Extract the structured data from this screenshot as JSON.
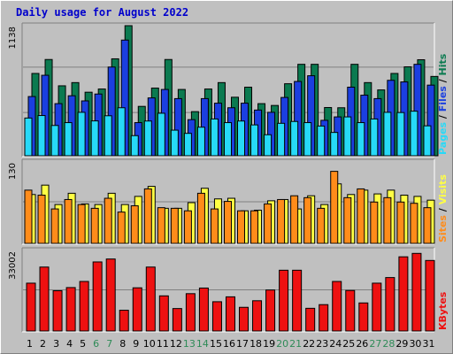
{
  "title": "Daily usage for August 2022",
  "colors": {
    "hits": "#0b7a50",
    "files": "#1b3fe0",
    "pages": "#27d9f7",
    "visits": "#ffff44",
    "sites": "#ff8c1a",
    "kbytes": "#ee1111",
    "weekend_label": "#2e8b57",
    "weekday_label": "#000000",
    "panel_bg": "#c0c0c0",
    "grid": "#808080"
  },
  "chart_data": [
    {
      "type": "bar",
      "name": "hits-files-pages",
      "y_label": "1138",
      "legend": [
        {
          "text": "Pages",
          "color": "#27d9f7"
        },
        {
          "text": " / ",
          "color": "#000000"
        },
        {
          "text": "Files",
          "color": "#1b3fe0"
        },
        {
          "text": " / ",
          "color": "#000000"
        },
        {
          "text": "Hits",
          "color": "#0b7a50"
        }
      ],
      "ylim": [
        0,
        1138
      ],
      "series": [
        {
          "key": "hits",
          "values": [
            720,
            842,
            612,
            640,
            556,
            584,
            848,
            1138,
            432,
            592,
            842,
            580,
            386,
            584,
            640,
            512,
            600,
            456,
            440,
            630,
            800,
            800,
            422,
            420,
            800,
            640,
            576,
            720,
            778,
            840,
            694
          ]
        },
        {
          "key": "files",
          "values": [
            518,
            704,
            456,
            525,
            480,
            540,
            776,
            1012,
            290,
            506,
            580,
            500,
            316,
            500,
            460,
            420,
            460,
            400,
            380,
            510,
            650,
            700,
            310,
            340,
            600,
            530,
            500,
            660,
            646,
            800,
            618
          ]
        },
        {
          "key": "pages",
          "values": [
            330,
            352,
            265,
            290,
            380,
            305,
            350,
            420,
            176,
            304,
            372,
            224,
            196,
            250,
            322,
            290,
            304,
            270,
            184,
            284,
            300,
            290,
            260,
            204,
            340,
            290,
            322,
            380,
            378,
            390,
            262
          ]
        }
      ]
    },
    {
      "type": "bar",
      "name": "visits-sites",
      "y_label": "130",
      "legend": [
        {
          "text": "Sites",
          "color": "#ff8c1a"
        },
        {
          "text": " / ",
          "color": "#000000"
        },
        {
          "text": "Visits",
          "color": "#ffff44"
        }
      ],
      "ylim": [
        0,
        130
      ],
      "series": [
        {
          "key": "visits",
          "values": [
            78,
            93,
            62,
            80,
            63,
            62,
            80,
            62,
            75,
            91,
            56,
            56,
            65,
            88,
            71,
            72,
            52,
            53,
            68,
            70,
            55,
            76,
            62,
            95,
            78,
            85,
            79,
            85,
            77,
            75,
            69
          ]
        },
        {
          "key": "sites",
          "values": [
            85,
            77,
            55,
            70,
            62,
            56,
            72,
            50,
            60,
            87,
            57,
            56,
            52,
            80,
            55,
            67,
            52,
            52,
            63,
            70,
            76,
            73,
            56,
            115,
            73,
            87,
            66,
            73,
            66,
            64,
            57
          ]
        }
      ]
    },
    {
      "type": "bar",
      "name": "kbytes",
      "y_label": "33002",
      "legend": [
        {
          "text": "KBytes",
          "color": "#ee1111"
        }
      ],
      "ylim": [
        0,
        33002
      ],
      "series": [
        {
          "key": "kbytes",
          "values": [
            19600,
            26200,
            16500,
            17800,
            20300,
            28300,
            29500,
            8500,
            17700,
            26200,
            14400,
            9200,
            15300,
            17600,
            12000,
            14000,
            9700,
            12400,
            16800,
            24900,
            24900,
            9300,
            10800,
            20300,
            16600,
            11500,
            19600,
            21900,
            30400,
            31800,
            28900
          ]
        }
      ]
    }
  ],
  "x_axis": {
    "days": [
      "1",
      "2",
      "3",
      "4",
      "5",
      "6",
      "7",
      "8",
      "9",
      "10",
      "11",
      "12",
      "13",
      "14",
      "15",
      "16",
      "17",
      "18",
      "19",
      "20",
      "21",
      "22",
      "23",
      "24",
      "25",
      "26",
      "27",
      "28",
      "29",
      "30",
      "31"
    ],
    "weekend_days": [
      "6",
      "7",
      "13",
      "14",
      "20",
      "21",
      "27",
      "28"
    ]
  }
}
